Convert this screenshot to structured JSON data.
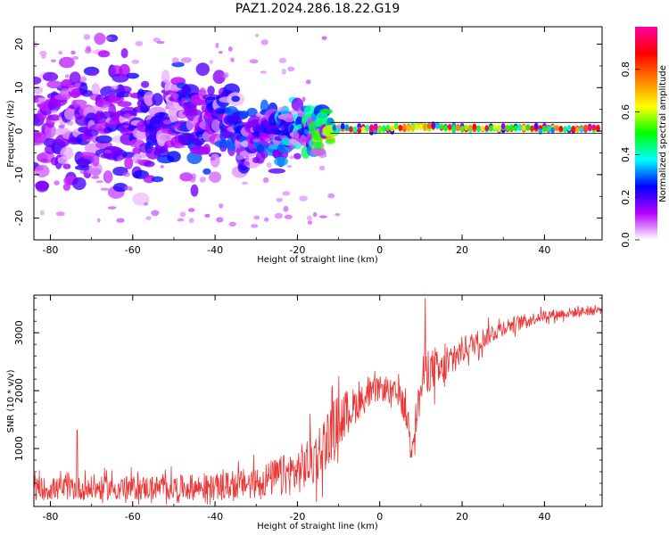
{
  "title": "PAZ1.2024.286.18.22.G19",
  "chart_data": [
    {
      "type": "heatmap",
      "xlabel": "Height of straight line (km)",
      "ylabel": "Frequency (Hz)",
      "xlim": [
        -84,
        54
      ],
      "ylim": [
        -25,
        24
      ],
      "x_ticks": [
        -80,
        -60,
        -40,
        -20,
        0,
        20,
        40
      ],
      "y_ticks": [
        -20,
        -10,
        0,
        10,
        20
      ],
      "colorbar": {
        "label": "Normalized spectral amplitude",
        "range": [
          0.0,
          1.0
        ],
        "ticks": [
          0.0,
          0.2,
          0.4,
          0.6,
          0.8
        ],
        "tick_labels": [
          "0.0",
          "0.2",
          "0.4",
          "0.6",
          "0.8"
        ],
        "colors": [
          "#ffffff",
          "#b400ff",
          "#0000ff",
          "#00ffff",
          "#00ff00",
          "#ffff00",
          "#ff8000",
          "#ff0000",
          "#ff00a0"
        ]
      },
      "band": [
        {
          "x": -80,
          "center": 0.5,
          "spread": 8,
          "amp": 0.15
        },
        {
          "x": -60,
          "center": 1.5,
          "spread": 7,
          "amp": 0.18
        },
        {
          "x": -50,
          "center": 3,
          "spread": 6,
          "amp": 0.2
        },
        {
          "x": -40,
          "center": 1,
          "spread": 5,
          "amp": 0.22
        },
        {
          "x": -30,
          "center": -1,
          "spread": 4,
          "amp": 0.22
        },
        {
          "x": -20,
          "center": 0,
          "spread": 3,
          "amp": 0.3
        },
        {
          "x": -10,
          "center": 0.5,
          "spread": 1.5,
          "amp": 0.55
        },
        {
          "x": 0,
          "center": 0.5,
          "spread": 1.2,
          "amp": 0.8
        },
        {
          "x": 10,
          "center": 1,
          "spread": 1.2,
          "amp": 0.6
        },
        {
          "x": 20,
          "center": 0.7,
          "spread": 1,
          "amp": 0.75
        },
        {
          "x": 40,
          "center": 0.6,
          "spread": 0.9,
          "amp": 0.72
        },
        {
          "x": 54,
          "center": 0.6,
          "spread": 0.9,
          "amp": 0.7
        }
      ]
    },
    {
      "type": "line",
      "xlabel": "Height of straight line (km)",
      "ylabel": "SNR (10 * v/v)",
      "xlim": [
        -84,
        54
      ],
      "ylim": [
        0,
        3650
      ],
      "x_ticks": [
        -80,
        -60,
        -40,
        -20,
        0,
        20,
        40
      ],
      "y_ticks": [
        1000,
        2000,
        3000
      ],
      "color": "#ee3333",
      "envelope": [
        {
          "x": -84,
          "mean": 300,
          "noise": 250
        },
        {
          "x": -60,
          "mean": 320,
          "noise": 260
        },
        {
          "x": -40,
          "mean": 330,
          "noise": 280
        },
        {
          "x": -30,
          "mean": 420,
          "noise": 350
        },
        {
          "x": -20,
          "mean": 600,
          "noise": 500
        },
        {
          "x": -15,
          "mean": 900,
          "noise": 650
        },
        {
          "x": -10,
          "mean": 1500,
          "noise": 600
        },
        {
          "x": -5,
          "mean": 1800,
          "noise": 350
        },
        {
          "x": 0,
          "mean": 2050,
          "noise": 250
        },
        {
          "x": 5,
          "mean": 1900,
          "noise": 300
        },
        {
          "x": 8,
          "mean": 1200,
          "noise": 350
        },
        {
          "x": 11,
          "mean": 2400,
          "noise": 500
        },
        {
          "x": 15,
          "mean": 2300,
          "noise": 450
        },
        {
          "x": 20,
          "mean": 2700,
          "noise": 300
        },
        {
          "x": 30,
          "mean": 3100,
          "noise": 180
        },
        {
          "x": 40,
          "mean": 3300,
          "noise": 120
        },
        {
          "x": 54,
          "mean": 3400,
          "noise": 100
        }
      ],
      "spikes": [
        {
          "x": -73.5,
          "value": 1320
        },
        {
          "x": 11,
          "value": 3600
        },
        {
          "x": 7.5,
          "value": 850
        }
      ]
    }
  ]
}
